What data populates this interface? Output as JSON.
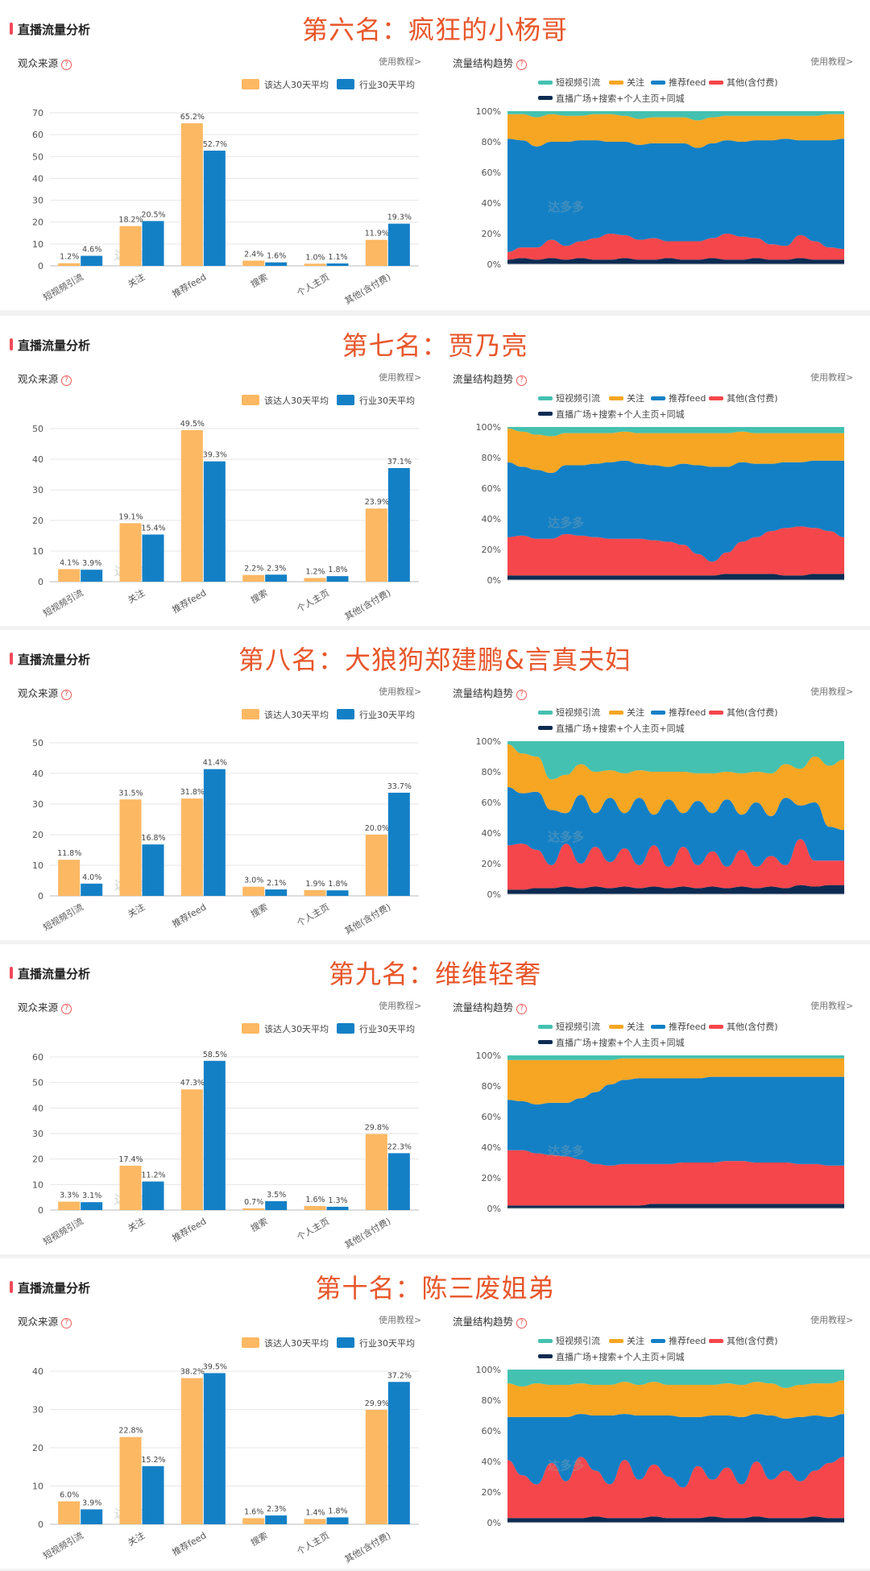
{
  "common": {
    "section_label": "直播流量分析",
    "sources_title": "观众来源",
    "trend_title": "流量结构趋势",
    "tutorial": "使用教程>",
    "help": "?",
    "watermark": "达多多",
    "bar_legend": [
      "该达人30天平均",
      "行业30天平均"
    ],
    "area_legend_row1": [
      "短视频引流",
      "关注",
      "推荐feed",
      "其他(含付费)"
    ],
    "area_legend_row2": "直播广场+搜索+个人主页+同城",
    "area_yticks": [
      "0%",
      "20%",
      "40%",
      "60%",
      "80%",
      "100%"
    ],
    "colors": {
      "creator": "#fdb863",
      "industry": "#1380c6",
      "short_video": "#44c1b0",
      "follow": "#f6a623",
      "feed": "#1380c6",
      "other": "#f5464b",
      "plaza": "#0d2b52",
      "title": "#e8562a"
    }
  },
  "panels": [
    {
      "title": "第六名：疯狂的小杨哥"
    },
    {
      "title": "第七名：贾乃亮"
    },
    {
      "title": "第八名：大狼狗郑建鹏&言真夫妇"
    },
    {
      "title": "第九名：维维轻奢"
    },
    {
      "title": "第十名：陈三废姐弟"
    }
  ],
  "chart_data": [
    {
      "type": "bar",
      "title": "观众来源",
      "categories": [
        "短视频引流",
        "关注",
        "推荐feed",
        "搜索",
        "个人主页",
        "其他(含付费)"
      ],
      "series": [
        {
          "name": "该达人30天平均",
          "values": [
            1.2,
            18.2,
            65.2,
            2.4,
            1.0,
            11.9
          ],
          "labels": [
            "1.2%",
            "18.2%",
            "65.2%",
            "2.4%",
            "1.0%",
            "11.9%"
          ]
        },
        {
          "name": "行业30天平均",
          "values": [
            4.6,
            20.5,
            52.7,
            1.6,
            1.1,
            19.3
          ],
          "labels": [
            "4.6%",
            "20.5%",
            "52.7%",
            "1.6%",
            "1.1%",
            "19.3%"
          ]
        }
      ],
      "ylim": [
        0,
        70
      ],
      "yticks": [
        0,
        10,
        20,
        30,
        40,
        50,
        60,
        70
      ]
    },
    {
      "type": "area",
      "title": "流量结构趋势",
      "stacked": true,
      "x_points": 24,
      "series": [
        {
          "name": "直播广场+搜索+个人主页+同城",
          "values": [
            3,
            4,
            3,
            4,
            3,
            4,
            3,
            3,
            4,
            3,
            3,
            4,
            3,
            3,
            4,
            3,
            3,
            4,
            3,
            3,
            4,
            3,
            3,
            3
          ]
        },
        {
          "name": "其他(含付费)",
          "values": [
            5,
            7,
            8,
            12,
            9,
            11,
            14,
            17,
            15,
            13,
            14,
            11,
            12,
            12,
            13,
            17,
            15,
            13,
            10,
            9,
            15,
            12,
            8,
            7
          ]
        },
        {
          "name": "推荐feed",
          "values": [
            74,
            70,
            66,
            64,
            68,
            66,
            64,
            60,
            61,
            62,
            62,
            64,
            64,
            61,
            62,
            61,
            62,
            64,
            68,
            70,
            62,
            66,
            70,
            72
          ]
        },
        {
          "name": "关注",
          "values": [
            16,
            17,
            19,
            18,
            17,
            16,
            17,
            18,
            17,
            17,
            17,
            17,
            17,
            18,
            17,
            16,
            17,
            16,
            16,
            15,
            16,
            16,
            17,
            16
          ]
        },
        {
          "name": "短视频引流",
          "values": [
            2,
            2,
            4,
            2,
            3,
            3,
            2,
            2,
            3,
            5,
            4,
            4,
            4,
            6,
            4,
            3,
            3,
            3,
            3,
            3,
            3,
            3,
            2,
            2
          ]
        }
      ],
      "ylim": [
        0,
        100
      ]
    },
    {
      "type": "bar",
      "title": "观众来源",
      "categories": [
        "短视频引流",
        "关注",
        "推荐feed",
        "搜索",
        "个人主页",
        "其他(含付费)"
      ],
      "series": [
        {
          "name": "该达人30天平均",
          "values": [
            4.1,
            19.1,
            49.5,
            2.2,
            1.2,
            23.9
          ],
          "labels": [
            "4.1%",
            "19.1%",
            "49.5%",
            "2.2%",
            "1.2%",
            "23.9%"
          ]
        },
        {
          "name": "行业30天平均",
          "values": [
            3.9,
            15.4,
            39.3,
            2.3,
            1.8,
            37.1
          ],
          "labels": [
            "3.9%",
            "15.4%",
            "39.3%",
            "2.3%",
            "1.8%",
            "37.1%"
          ]
        }
      ],
      "ylim": [
        0,
        50
      ],
      "yticks": [
        0,
        10,
        20,
        30,
        40,
        50
      ]
    },
    {
      "type": "area",
      "title": "流量结构趋势",
      "stacked": true,
      "x_points": 24,
      "series": [
        {
          "name": "直播广场+搜索+个人主页+同城",
          "values": [
            3,
            3,
            3,
            3,
            3,
            3,
            3,
            3,
            3,
            3,
            3,
            3,
            3,
            3,
            3,
            4,
            4,
            4,
            4,
            3,
            3,
            4,
            4,
            4
          ]
        },
        {
          "name": "其他(含付费)",
          "values": [
            25,
            26,
            24,
            24,
            27,
            26,
            25,
            24,
            24,
            24,
            23,
            22,
            20,
            14,
            9,
            14,
            21,
            24,
            28,
            31,
            32,
            30,
            28,
            24
          ]
        },
        {
          "name": "推荐feed",
          "values": [
            49,
            45,
            45,
            43,
            45,
            46,
            48,
            50,
            51,
            49,
            49,
            49,
            53,
            58,
            62,
            56,
            52,
            48,
            44,
            43,
            42,
            44,
            46,
            50
          ]
        },
        {
          "name": "关注",
          "values": [
            22,
            23,
            23,
            24,
            21,
            21,
            20,
            19,
            19,
            20,
            21,
            22,
            20,
            21,
            22,
            22,
            20,
            20,
            20,
            19,
            19,
            18,
            18,
            18
          ]
        },
        {
          "name": "短视频引流",
          "values": [
            1,
            3,
            5,
            6,
            4,
            4,
            4,
            4,
            3,
            4,
            4,
            4,
            4,
            4,
            4,
            4,
            3,
            4,
            4,
            4,
            4,
            4,
            4,
            4
          ]
        }
      ],
      "ylim": [
        0,
        100
      ]
    },
    {
      "type": "bar",
      "title": "观众来源",
      "categories": [
        "短视频引流",
        "关注",
        "推荐feed",
        "搜索",
        "个人主页",
        "其他(含付费)"
      ],
      "series": [
        {
          "name": "该达人30天平均",
          "values": [
            11.8,
            31.5,
            31.8,
            3.0,
            1.9,
            20.0
          ],
          "labels": [
            "11.8%",
            "31.5%",
            "31.8%",
            "3.0%",
            "1.9%",
            "20.0%"
          ]
        },
        {
          "name": "行业30天平均",
          "values": [
            4.0,
            16.8,
            41.4,
            2.1,
            1.8,
            33.7
          ],
          "labels": [
            "4.0%",
            "16.8%",
            "41.4%",
            "2.1%",
            "1.8%",
            "33.7%"
          ]
        }
      ],
      "ylim": [
        0,
        50
      ],
      "yticks": [
        0,
        10,
        20,
        30,
        40,
        50
      ]
    },
    {
      "type": "area",
      "title": "流量结构趋势",
      "stacked": true,
      "x_points": 24,
      "series": [
        {
          "name": "直播广场+搜索+个人主页+同城",
          "values": [
            3,
            3,
            4,
            4,
            5,
            4,
            5,
            4,
            5,
            4,
            5,
            4,
            5,
            4,
            5,
            4,
            5,
            4,
            5,
            4,
            6,
            5,
            6,
            6
          ]
        },
        {
          "name": "其他(含付费)",
          "values": [
            29,
            30,
            25,
            15,
            28,
            16,
            26,
            17,
            25,
            15,
            27,
            14,
            26,
            15,
            23,
            14,
            24,
            14,
            20,
            15,
            30,
            17,
            16,
            16
          ]
        },
        {
          "name": "推荐feed",
          "values": [
            38,
            33,
            38,
            36,
            20,
            45,
            22,
            42,
            23,
            44,
            20,
            44,
            22,
            42,
            25,
            44,
            23,
            42,
            26,
            44,
            22,
            38,
            22,
            20
          ]
        },
        {
          "name": "关注",
          "values": [
            28,
            26,
            23,
            20,
            25,
            20,
            27,
            18,
            26,
            18,
            28,
            18,
            27,
            18,
            26,
            18,
            27,
            20,
            28,
            22,
            24,
            30,
            40,
            46
          ]
        },
        {
          "name": "短视频引流",
          "values": [
            2,
            8,
            10,
            25,
            22,
            15,
            20,
            19,
            21,
            19,
            20,
            20,
            20,
            21,
            21,
            20,
            21,
            20,
            21,
            15,
            18,
            10,
            16,
            12
          ]
        }
      ],
      "ylim": [
        0,
        100
      ]
    },
    {
      "type": "bar",
      "title": "观众来源",
      "categories": [
        "短视频引流",
        "关注",
        "推荐feed",
        "搜索",
        "个人主页",
        "其他(含付费)"
      ],
      "series": [
        {
          "name": "该达人30天平均",
          "values": [
            3.3,
            17.4,
            47.3,
            0.7,
            1.6,
            29.8
          ],
          "labels": [
            "3.3%",
            "17.4%",
            "47.3%",
            "0.7%",
            "1.6%",
            "29.8%"
          ]
        },
        {
          "name": "行业30天平均",
          "values": [
            3.1,
            11.2,
            58.5,
            3.5,
            1.3,
            22.3
          ],
          "labels": [
            "3.1%",
            "11.2%",
            "58.5%",
            "3.5%",
            "1.3%",
            "22.3%"
          ]
        }
      ],
      "ylim": [
        0,
        60
      ],
      "yticks": [
        0,
        10,
        20,
        30,
        40,
        50,
        60
      ]
    },
    {
      "type": "area",
      "title": "流量结构趋势",
      "stacked": true,
      "x_points": 24,
      "series": [
        {
          "name": "直播广场+搜索+个人主页+同城",
          "values": [
            2,
            2,
            2,
            2,
            2,
            2,
            2,
            2,
            2,
            2,
            3,
            3,
            3,
            3,
            3,
            3,
            3,
            3,
            3,
            3,
            3,
            3,
            3,
            3
          ]
        },
        {
          "name": "其他(含付费)",
          "values": [
            36,
            36,
            34,
            33,
            32,
            30,
            27,
            26,
            27,
            27,
            26,
            26,
            27,
            27,
            27,
            28,
            28,
            27,
            27,
            27,
            26,
            26,
            25,
            25
          ]
        },
        {
          "name": "推荐feed",
          "values": [
            33,
            32,
            32,
            34,
            35,
            40,
            47,
            53,
            55,
            56,
            56,
            56,
            55,
            55,
            56,
            55,
            55,
            56,
            56,
            56,
            57,
            57,
            58,
            58
          ]
        },
        {
          "name": "关注",
          "values": [
            26,
            27,
            29,
            28,
            28,
            25,
            21,
            16,
            14,
            13,
            13,
            13,
            13,
            13,
            12,
            12,
            12,
            12,
            12,
            12,
            12,
            12,
            12,
            12
          ]
        },
        {
          "name": "短视频引流",
          "values": [
            3,
            3,
            3,
            3,
            3,
            3,
            3,
            3,
            2,
            2,
            2,
            2,
            2,
            2,
            2,
            2,
            2,
            2,
            2,
            2,
            2,
            2,
            2,
            2
          ]
        }
      ],
      "ylim": [
        0,
        100
      ]
    },
    {
      "type": "bar",
      "title": "观众来源",
      "categories": [
        "短视频引流",
        "关注",
        "推荐feed",
        "搜索",
        "个人主页",
        "其他(含付费)"
      ],
      "series": [
        {
          "name": "该达人30天平均",
          "values": [
            6.0,
            22.8,
            38.2,
            1.6,
            1.4,
            29.9
          ],
          "labels": [
            "6.0%",
            "22.8%",
            "38.2%",
            "1.6%",
            "1.4%",
            "29.9%"
          ]
        },
        {
          "name": "行业30天平均",
          "values": [
            3.9,
            15.2,
            39.5,
            2.3,
            1.8,
            37.2
          ],
          "labels": [
            "3.9%",
            "15.2%",
            "39.5%",
            "2.3%",
            "1.8%",
            "37.2%"
          ]
        }
      ],
      "ylim": [
        0,
        40
      ],
      "yticks": [
        0,
        10,
        20,
        30,
        40
      ]
    },
    {
      "type": "area",
      "title": "流量结构趋势",
      "stacked": true,
      "x_points": 24,
      "series": [
        {
          "name": "直播广场+搜索+个人主页+同城",
          "values": [
            3,
            3,
            3,
            3,
            3,
            3,
            4,
            3,
            3,
            3,
            4,
            3,
            3,
            3,
            4,
            3,
            3,
            4,
            3,
            3,
            3,
            4,
            3,
            3
          ]
        },
        {
          "name": "其他(含付费)",
          "values": [
            38,
            28,
            22,
            36,
            24,
            40,
            30,
            22,
            38,
            25,
            34,
            27,
            20,
            34,
            24,
            33,
            22,
            36,
            25,
            31,
            24,
            30,
            36,
            40
          ]
        },
        {
          "name": "推荐feed",
          "values": [
            28,
            38,
            44,
            30,
            42,
            28,
            36,
            45,
            30,
            42,
            32,
            40,
            46,
            32,
            42,
            34,
            44,
            31,
            42,
            34,
            42,
            36,
            30,
            28
          ]
        },
        {
          "name": "关注",
          "values": [
            22,
            20,
            22,
            21,
            21,
            20,
            20,
            20,
            21,
            20,
            22,
            20,
            21,
            21,
            20,
            21,
            21,
            21,
            21,
            20,
            21,
            21,
            22,
            22
          ]
        },
        {
          "name": "短视频引流",
          "values": [
            9,
            11,
            9,
            10,
            10,
            9,
            10,
            10,
            8,
            10,
            8,
            10,
            10,
            10,
            10,
            9,
            10,
            8,
            9,
            12,
            10,
            9,
            9,
            7
          ]
        }
      ],
      "ylim": [
        0,
        100
      ]
    }
  ]
}
